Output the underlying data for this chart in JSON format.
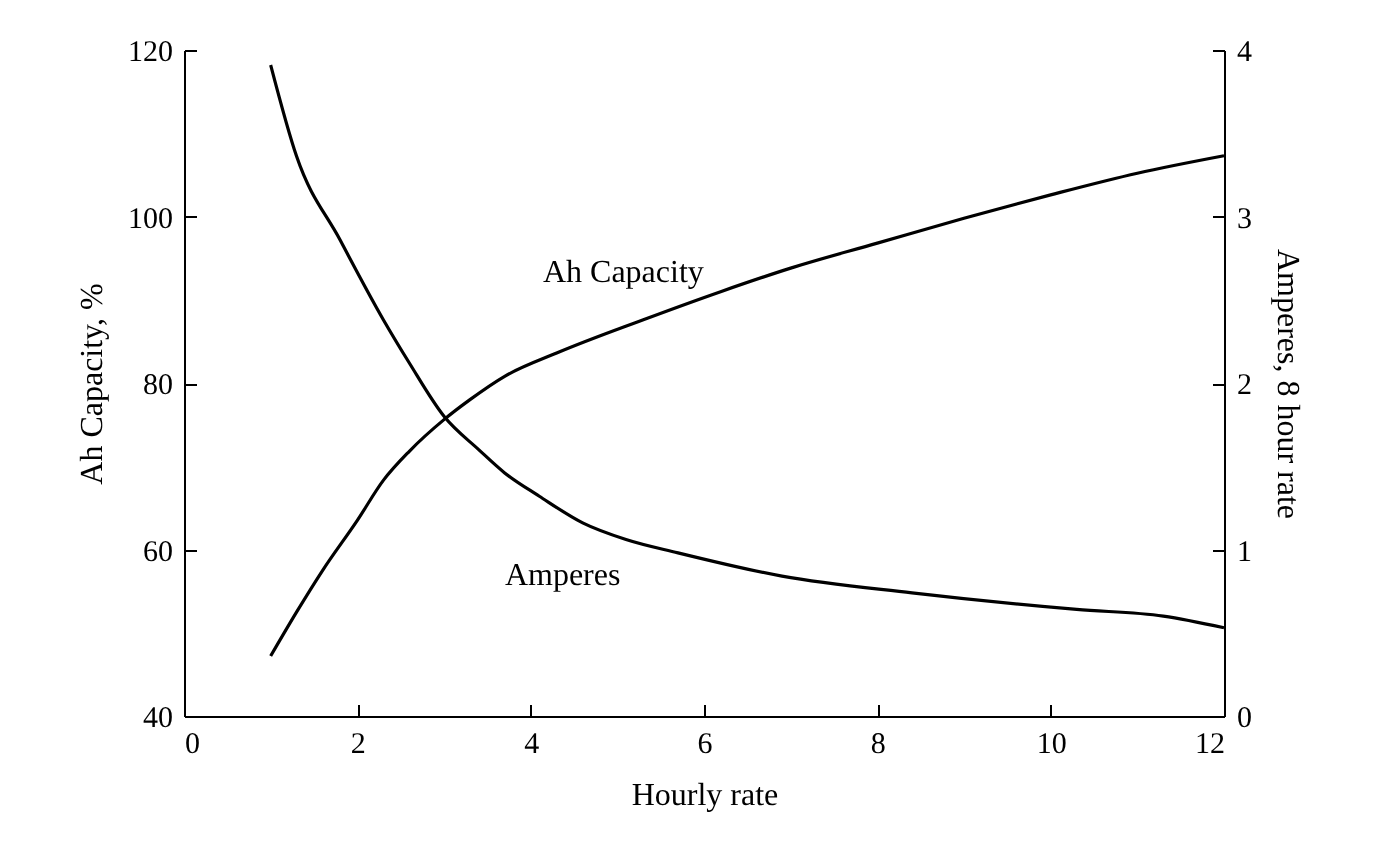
{
  "chart_data": {
    "type": "line",
    "xlabel": "Hourly rate",
    "ylabel": "Ah Capacity, %",
    "y2label": "Amperes, 8 hour rate",
    "xlim": [
      0,
      12
    ],
    "xticks": [
      0,
      2,
      4,
      6,
      8,
      10,
      12
    ],
    "ylim": [
      40,
      120
    ],
    "yticks": [
      40,
      60,
      80,
      100,
      120
    ],
    "y2lim": [
      0,
      4
    ],
    "y2ticks": [
      0,
      1,
      2,
      3,
      4
    ],
    "grid": false,
    "marker": "none",
    "line_style": "solid",
    "series": [
      {
        "name": "Ah Capacity",
        "color": "#000000",
        "x": [
          1,
          1.3,
          1.6,
          2,
          2.3,
          2.6,
          3,
          3.3,
          3.7,
          4.3,
          5.3,
          6.2,
          7,
          8,
          9,
          10,
          11,
          12
        ],
        "values": [
          47.2,
          52.5,
          57.5,
          63.5,
          68.3,
          71.8,
          75.6,
          78,
          80.8,
          83.6,
          87.6,
          91,
          93.8,
          96.8,
          99.8,
          102.6,
          105.2,
          107.3
        ]
      },
      {
        "name": "Amperes",
        "color": "#000000",
        "axis": "y2",
        "x": [
          1,
          1.3,
          1.8,
          2.3,
          2.6,
          3,
          3.4,
          3.7,
          4.1,
          4.6,
          5.1,
          5.7,
          6.9,
          8.4,
          10.3,
          11.3,
          12
        ],
        "values": [
          3.91,
          3.36,
          2.86,
          2.38,
          2.12,
          1.8,
          1.6,
          1.46,
          1.32,
          1.16,
          1.06,
          0.98,
          0.84,
          0.74,
          0.64,
          0.6,
          0.53
        ]
      }
    ]
  }
}
